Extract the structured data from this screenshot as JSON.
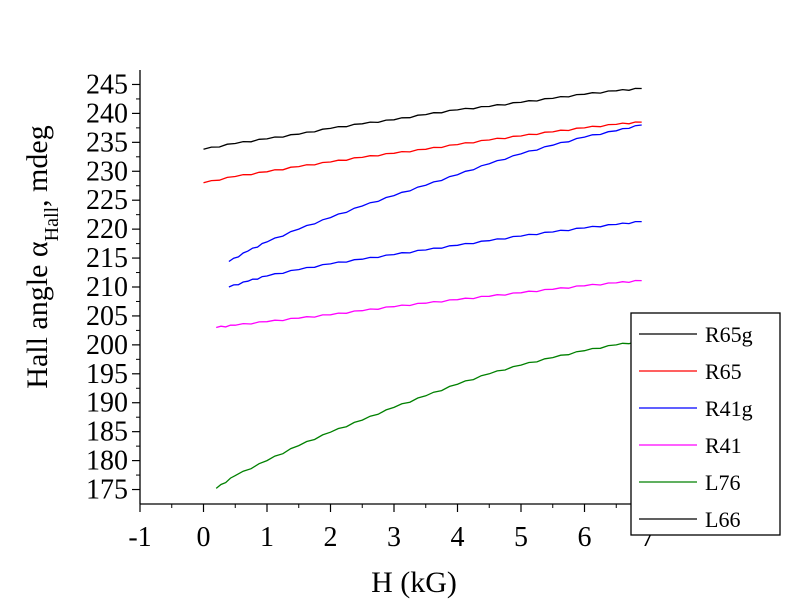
{
  "chart_data": {
    "type": "line",
    "title": "",
    "xlabel": "H (kG)",
    "ylabel": {
      "prefix": "Hall angle α",
      "subscript": "Hall",
      "suffix": ", mdeg"
    },
    "xlim": [
      -1,
      7
    ],
    "ylim": [
      172.5,
      247.5
    ],
    "x_ticks": [
      -1,
      0,
      1,
      2,
      3,
      4,
      5,
      6,
      7
    ],
    "x_tick_labels": [
      "-1",
      "0",
      "1",
      "2",
      "3",
      "4",
      "5",
      "6",
      "7"
    ],
    "y_ticks": [
      175,
      180,
      185,
      190,
      195,
      200,
      205,
      210,
      215,
      220,
      225,
      230,
      235,
      240,
      245
    ],
    "y_tick_labels": [
      "175",
      "180",
      "185",
      "190",
      "195",
      "200",
      "205",
      "210",
      "215",
      "220",
      "225",
      "230",
      "235",
      "240",
      "245"
    ],
    "grid": false,
    "legend_position": "bottom-right",
    "series": [
      {
        "name": "R65g",
        "color": "#000000",
        "points": [
          [
            0,
            233.8
          ],
          [
            0.5,
            234.8
          ],
          [
            1,
            235.6
          ],
          [
            1.5,
            236.4
          ],
          [
            2,
            237.4
          ],
          [
            2.5,
            238.2
          ],
          [
            3,
            238.9
          ],
          [
            3.5,
            239.8
          ],
          [
            4,
            240.6
          ],
          [
            4.5,
            241.2
          ],
          [
            5,
            241.9
          ],
          [
            5.5,
            242.6
          ],
          [
            6,
            243.3
          ],
          [
            6.5,
            243.9
          ],
          [
            6.9,
            244.3
          ]
        ]
      },
      {
        "name": "R65",
        "color": "#ff0000",
        "points": [
          [
            0,
            228.0
          ],
          [
            0.5,
            229.1
          ],
          [
            1,
            229.9
          ],
          [
            1.5,
            230.8
          ],
          [
            2,
            231.6
          ],
          [
            2.5,
            232.4
          ],
          [
            3,
            233.1
          ],
          [
            3.5,
            233.8
          ],
          [
            4,
            234.6
          ],
          [
            4.5,
            235.4
          ],
          [
            5,
            236.1
          ],
          [
            5.5,
            236.8
          ],
          [
            6,
            237.5
          ],
          [
            6.5,
            238.1
          ],
          [
            6.9,
            238.5
          ]
        ]
      },
      {
        "name": "R41g",
        "color": "#0000ff",
        "points": [
          [
            0.4,
            214.4
          ],
          [
            0.7,
            216.2
          ],
          [
            1,
            217.8
          ],
          [
            1.5,
            220.0
          ],
          [
            2,
            222.0
          ],
          [
            2.5,
            224.0
          ],
          [
            3,
            225.8
          ],
          [
            3.5,
            227.6
          ],
          [
            4,
            229.4
          ],
          [
            4.5,
            231.3
          ],
          [
            5,
            233.0
          ],
          [
            5.5,
            234.5
          ],
          [
            6,
            235.9
          ],
          [
            6.5,
            237.0
          ],
          [
            6.9,
            238.0
          ]
        ]
      },
      {
        "name": "R41",
        "color": "#ff00ff",
        "points": [
          [
            0.2,
            203.0
          ],
          [
            0.5,
            203.4
          ],
          [
            1,
            204.0
          ],
          [
            1.5,
            204.6
          ],
          [
            2,
            205.2
          ],
          [
            2.5,
            205.9
          ],
          [
            3,
            206.6
          ],
          [
            3.5,
            207.2
          ],
          [
            4,
            207.8
          ],
          [
            4.5,
            208.4
          ],
          [
            5,
            209.0
          ],
          [
            5.5,
            209.6
          ],
          [
            6,
            210.2
          ],
          [
            6.5,
            210.7
          ],
          [
            6.9,
            211.1
          ]
        ]
      },
      {
        "name": "L76",
        "color": "#008000",
        "points": [
          [
            0.2,
            175.2
          ],
          [
            0.5,
            177.4
          ],
          [
            1,
            180.0
          ],
          [
            1.5,
            182.6
          ],
          [
            2,
            184.9
          ],
          [
            2.5,
            187.0
          ],
          [
            3,
            189.2
          ],
          [
            3.5,
            191.2
          ],
          [
            4,
            193.2
          ],
          [
            4.5,
            195.0
          ],
          [
            5,
            196.5
          ],
          [
            5.5,
            197.8
          ],
          [
            6,
            199.0
          ],
          [
            6.5,
            200.0
          ],
          [
            6.9,
            200.6
          ]
        ]
      },
      {
        "name": "L66",
        "color": "#000000",
        "points": [
          [
            0.4,
            210.0
          ],
          [
            0.7,
            211.0
          ],
          [
            1,
            211.9
          ],
          [
            1.5,
            213.0
          ],
          [
            2,
            214.0
          ],
          [
            2.5,
            214.8
          ],
          [
            3,
            215.6
          ],
          [
            3.5,
            216.4
          ],
          [
            4,
            217.2
          ],
          [
            4.5,
            218.0
          ],
          [
            5,
            218.8
          ],
          [
            5.5,
            219.5
          ],
          [
            6,
            220.2
          ],
          [
            6.5,
            220.8
          ],
          [
            6.9,
            221.3
          ]
        ]
      }
    ],
    "legend_line_colors": [
      "#000000",
      "#ff0000",
      "#0000ff",
      "#ff00ff",
      "#008000",
      "#000000"
    ],
    "visible_series_colors": [
      "#000000",
      "#ff0000",
      "#0000ff",
      "#ff00ff",
      "#008000",
      "#0000ff"
    ]
  }
}
